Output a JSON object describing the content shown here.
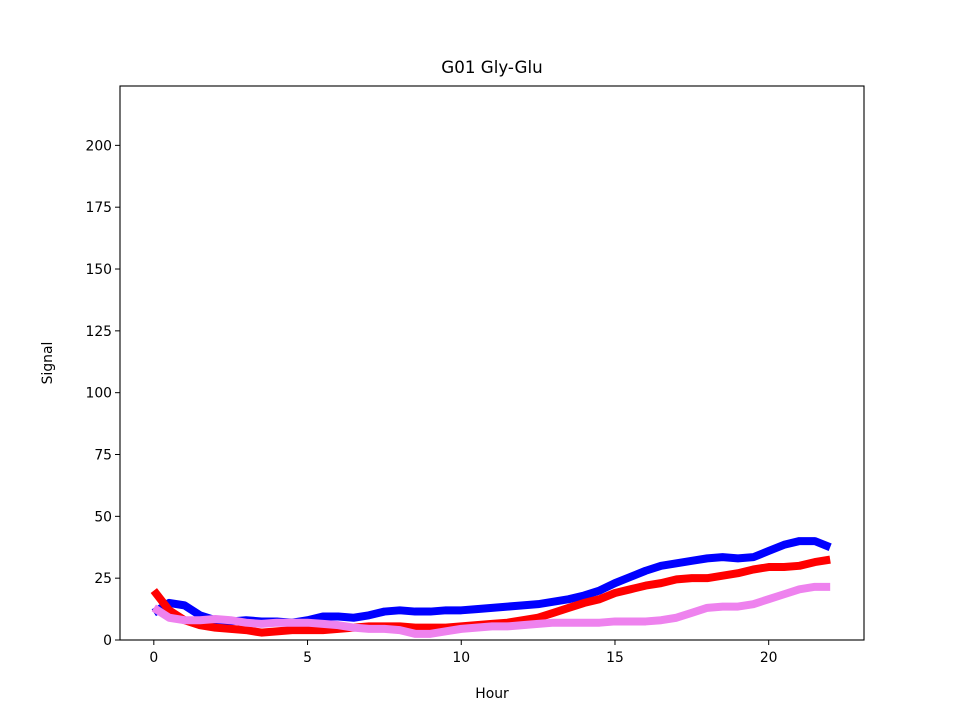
{
  "chart_data": {
    "type": "line",
    "title": "G01 Gly-Glu",
    "xlabel": "Hour",
    "ylabel": "Signal",
    "xlim": [
      -1.1,
      23.1
    ],
    "ylim": [
      0,
      224
    ],
    "xticks": [
      0,
      5,
      10,
      15,
      20
    ],
    "yticks": [
      0,
      25,
      50,
      75,
      100,
      125,
      150,
      175,
      200
    ],
    "grid": false,
    "legend": "none",
    "x": [
      0,
      0.5,
      1,
      1.5,
      2,
      2.5,
      3,
      3.5,
      4,
      4.5,
      5,
      5.5,
      6,
      6.5,
      7,
      7.5,
      8,
      8.5,
      9,
      9.5,
      10,
      10.5,
      11,
      11.5,
      12,
      12.5,
      13,
      13.5,
      14,
      14.5,
      15,
      15.5,
      16,
      16.5,
      17,
      17.5,
      18,
      18.5,
      19,
      19.5,
      20,
      20.5,
      21,
      21.5,
      22
    ],
    "series": [
      {
        "color": "#0000ff",
        "values": [
          11,
          15,
          14,
          10,
          8,
          7.5,
          8,
          7.5,
          7.5,
          7,
          8,
          9.5,
          9.5,
          9,
          10,
          11.5,
          12,
          11.5,
          11.5,
          12,
          12,
          12.5,
          13,
          13.5,
          14,
          14.5,
          15.5,
          16.5,
          18,
          20,
          23,
          25.5,
          28,
          30,
          31,
          32,
          33,
          33.5,
          33,
          33.5,
          36,
          38.5,
          40,
          40,
          37.5
        ]
      },
      {
        "color": "#ff0000",
        "values": [
          20,
          12,
          8,
          6,
          5,
          4.5,
          4,
          3,
          3.5,
          4,
          4,
          4,
          4.5,
          5,
          5.5,
          5.5,
          5.5,
          5,
          5,
          5,
          5.5,
          6,
          6.5,
          7,
          8,
          9,
          11,
          13,
          15,
          16.5,
          19,
          20.5,
          22,
          23,
          24.5,
          25,
          25,
          26,
          27,
          28.5,
          29.5,
          29.5,
          30,
          31.5,
          32.5
        ]
      },
      {
        "color": "#ee82ee",
        "values": [
          13,
          9,
          8,
          8,
          8.5,
          8,
          7,
          6.5,
          7,
          7,
          7,
          6.5,
          6,
          5,
          4.5,
          4.5,
          4,
          2.5,
          2.5,
          3.5,
          4.5,
          5,
          5.5,
          5.5,
          6,
          6.5,
          7,
          7,
          7,
          7,
          7.5,
          7.5,
          7.5,
          8,
          9,
          11,
          13,
          13.5,
          13.5,
          14.5,
          16.5,
          18.5,
          20.5,
          21.5,
          21.5
        ]
      }
    ]
  }
}
